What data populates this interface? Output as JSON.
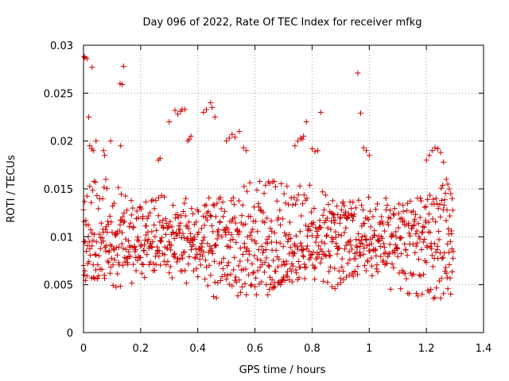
{
  "chart_data": {
    "type": "scatter",
    "title": "Day 096 of 2022, Rate Of TEC Index for receiver mfkg",
    "xlabel": "GPS time / hours",
    "ylabel": "ROTI / TECUs",
    "xlim": [
      0,
      1.4
    ],
    "ylim": [
      0,
      0.03
    ],
    "x_ticks": [
      0,
      0.2,
      0.4,
      0.6,
      0.8,
      1,
      1.2,
      1.4
    ],
    "x_tick_labels": [
      "0",
      "0.2",
      "0.4",
      "0.6",
      "0.8",
      "1",
      "1.2",
      "1.4"
    ],
    "y_ticks": [
      0,
      0.005,
      0.01,
      0.015,
      0.02,
      0.025,
      0.03
    ],
    "y_tick_labels": [
      "0",
      "0.005",
      "0.01",
      "0.015",
      "0.02",
      "0.025",
      "0.03"
    ],
    "grid": true,
    "marker": "+",
    "color": "#cc0000",
    "series": [
      {
        "x": [
          0.0,
          0.003,
          0.006,
          0.01,
          0.015,
          0.02,
          0.025,
          0.03,
          0.035,
          0.04,
          0.045,
          0.05,
          0.055,
          0.06,
          0.065,
          0.07,
          0.075,
          0.08,
          0.085,
          0.09,
          0.095,
          0.1,
          0.105,
          0.11,
          0.115,
          0.12,
          0.125,
          0.13,
          0.135,
          0.14,
          0.145,
          0.15,
          0.155,
          0.16,
          0.165,
          0.17,
          0.175,
          0.18,
          0.185,
          0.19,
          0.195,
          0.2,
          0.205,
          0.21,
          0.215,
          0.22,
          0.225,
          0.23,
          0.235,
          0.24,
          0.245,
          0.25,
          0.255,
          0.26,
          0.265,
          0.27,
          0.275,
          0.28,
          0.285,
          0.29,
          0.295,
          0.3,
          0.305,
          0.31,
          0.315,
          0.32,
          0.325,
          0.33,
          0.335,
          0.34,
          0.345,
          0.35,
          0.355,
          0.36,
          0.365,
          0.37,
          0.375,
          0.38,
          0.385,
          0.39,
          0.395,
          0.4,
          0.405,
          0.41,
          0.415,
          0.42,
          0.425,
          0.43,
          0.435,
          0.44,
          0.445,
          0.45,
          0.455,
          0.46,
          0.465,
          0.47,
          0.475,
          0.48,
          0.485,
          0.49,
          0.495,
          0.5,
          0.505,
          0.51,
          0.515,
          0.52,
          0.525,
          0.53,
          0.535,
          0.54,
          0.545,
          0.55,
          0.555,
          0.56,
          0.565,
          0.57,
          0.575,
          0.58,
          0.585,
          0.59,
          0.595,
          0.6,
          0.605,
          0.61,
          0.615,
          0.62,
          0.625,
          0.63,
          0.635,
          0.64,
          0.645,
          0.65,
          0.655,
          0.66,
          0.665,
          0.67,
          0.675,
          0.68,
          0.685,
          0.69,
          0.695,
          0.7,
          0.705,
          0.71,
          0.715,
          0.72,
          0.725,
          0.73,
          0.735,
          0.74,
          0.745,
          0.75,
          0.755,
          0.76,
          0.765,
          0.77,
          0.775,
          0.78,
          0.785,
          0.79,
          0.795,
          0.8,
          0.805,
          0.81,
          0.815,
          0.82,
          0.825,
          0.83,
          0.835,
          0.84,
          0.845,
          0.85,
          0.855,
          0.86,
          0.865,
          0.87,
          0.875,
          0.88,
          0.885,
          0.89,
          0.895,
          0.9,
          0.905,
          0.91,
          0.915,
          0.92,
          0.925,
          0.93,
          0.935,
          0.94,
          0.945,
          0.95,
          0.955,
          0.96,
          0.965,
          0.97,
          0.975,
          0.98,
          0.985,
          0.99,
          0.995,
          1.0,
          1.005,
          1.01,
          1.015,
          1.02,
          1.025,
          1.03,
          1.035,
          1.04,
          1.045,
          1.05,
          1.055,
          1.06,
          1.065,
          1.07,
          1.075,
          1.08,
          1.085,
          1.09,
          1.095,
          1.1,
          1.105,
          1.11,
          1.115,
          1.12,
          1.125,
          1.13,
          1.135,
          1.14,
          1.145,
          1.15,
          1.155,
          1.16,
          1.165,
          1.17,
          1.175,
          1.18,
          1.185,
          1.19,
          1.195,
          1.2,
          1.205,
          1.21,
          1.215,
          1.22,
          1.225,
          1.23,
          1.235,
          1.24,
          1.245,
          1.25,
          1.255,
          1.26,
          1.265,
          1.27,
          1.275,
          1.28,
          1.285,
          1.29,
          0.0,
          0.004,
          0.008,
          0.012,
          0.017,
          0.022,
          0.027,
          0.032,
          0.037,
          0.042,
          0.047,
          0.052,
          0.057,
          0.062,
          0.067,
          0.072,
          0.077,
          0.082,
          0.087,
          0.092,
          0.097,
          0.102,
          0.107,
          0.112,
          0.117,
          0.122,
          0.127,
          0.132,
          0.137,
          0.142,
          0.147,
          0.152,
          0.157,
          0.162,
          0.167,
          0.172,
          0.177,
          0.182,
          0.187,
          0.192,
          0.197,
          0.202,
          0.207,
          0.212,
          0.217,
          0.222,
          0.227,
          0.232,
          0.237,
          0.242,
          0.247,
          0.252,
          0.257,
          0.262,
          0.267,
          0.272,
          0.277,
          0.282,
          0.287,
          0.292,
          0.297,
          0.302,
          0.307,
          0.312,
          0.317,
          0.322,
          0.327,
          0.332,
          0.337,
          0.342,
          0.347,
          0.352,
          0.357,
          0.362,
          0.367,
          0.372,
          0.377,
          0.382,
          0.387,
          0.392,
          0.397,
          0.402,
          0.407,
          0.412,
          0.417,
          0.422,
          0.427,
          0.432,
          0.437,
          0.442,
          0.447,
          0.452,
          0.457,
          0.462,
          0.467,
          0.472,
          0.477,
          0.482,
          0.487,
          0.492,
          0.497,
          0.502,
          0.507,
          0.512,
          0.517,
          0.522,
          0.527,
          0.532,
          0.537,
          0.542,
          0.547,
          0.552,
          0.557,
          0.562,
          0.567,
          0.572,
          0.577,
          0.582,
          0.587,
          0.592,
          0.597,
          0.602,
          0.607,
          0.612,
          0.617,
          0.622,
          0.627,
          0.632,
          0.637,
          0.642,
          0.647,
          0.652,
          0.657,
          0.662,
          0.667,
          0.672,
          0.677,
          0.682,
          0.687,
          0.692,
          0.697,
          0.702,
          0.707,
          0.712,
          0.717,
          0.722,
          0.727,
          0.732,
          0.737,
          0.742,
          0.747,
          0.752,
          0.757,
          0.762,
          0.767,
          0.772,
          0.777,
          0.782,
          0.787,
          0.792,
          0.797,
          0.802,
          0.807,
          0.812,
          0.817,
          0.822,
          0.827,
          0.832,
          0.837,
          0.842,
          0.847,
          0.852,
          0.857,
          0.862,
          0.867,
          0.872,
          0.877,
          0.882,
          0.887,
          0.892,
          0.897,
          0.902,
          0.907,
          0.912,
          0.917,
          0.922,
          0.927,
          0.932,
          0.937,
          0.942,
          0.947,
          0.952,
          0.957,
          0.962,
          0.967,
          0.972,
          0.977,
          0.982,
          0.987,
          0.992,
          0.997,
          1.002,
          1.007,
          1.012,
          1.017,
          1.022,
          1.027,
          1.032,
          1.037,
          1.042,
          1.047,
          1.052,
          1.057,
          1.062,
          1.067,
          1.072,
          1.077,
          1.082,
          1.087,
          1.092,
          1.097,
          1.102,
          1.107,
          1.112,
          1.117,
          1.122,
          1.127,
          1.132,
          1.137,
          1.142,
          1.147,
          1.152,
          1.157,
          1.162,
          1.167,
          1.172,
          1.177,
          1.182,
          1.187,
          1.192,
          1.197,
          1.202,
          1.207,
          1.212,
          1.217,
          1.222,
          1.227,
          1.232,
          1.237,
          1.242,
          1.247,
          1.252,
          1.257,
          1.262,
          1.267,
          1.272,
          1.277,
          1.282,
          1.287,
          1.292,
          0.001,
          0.005,
          0.009,
          0.014,
          0.019,
          0.024,
          0.029,
          0.034,
          0.039,
          0.044,
          0.049,
          0.054,
          0.059,
          0.064,
          0.069,
          0.074,
          0.079,
          0.084,
          0.089,
          0.094,
          0.099,
          0.104,
          0.109,
          0.114,
          0.119,
          0.124,
          0.129,
          0.134,
          0.139,
          0.144,
          0.149,
          0.154,
          0.159,
          0.164,
          0.169,
          0.174,
          0.179,
          0.184,
          0.189,
          0.194,
          0.199,
          0.204,
          0.209,
          0.214,
          0.219,
          0.224,
          0.229,
          0.234,
          0.239,
          0.244,
          0.249,
          0.254,
          0.259,
          0.264,
          0.269,
          0.274,
          0.279,
          0.284,
          0.289,
          0.294,
          0.299,
          0.304,
          0.309,
          0.314,
          0.319,
          0.324,
          0.329,
          0.334,
          0.339,
          0.344,
          0.349,
          0.354,
          0.359,
          0.364,
          0.369,
          0.374,
          0.379,
          0.384,
          0.389,
          0.394,
          0.399,
          0.404,
          0.409,
          0.414,
          0.419,
          0.424,
          0.429,
          0.434,
          0.439,
          0.444,
          0.449,
          0.454,
          0.459,
          0.464,
          0.469,
          0.474,
          0.479,
          0.484,
          0.489,
          0.494,
          0.499,
          0.504,
          0.509,
          0.514,
          0.519,
          0.524,
          0.529,
          0.534,
          0.539,
          0.544,
          0.549,
          0.554,
          0.559,
          0.564,
          0.569,
          0.574,
          0.579,
          0.584,
          0.589,
          0.594,
          0.599,
          0.604,
          0.609,
          0.614,
          0.619,
          0.624,
          0.629,
          0.634,
          0.639,
          0.644,
          0.649,
          0.654,
          0.659,
          0.664,
          0.669,
          0.674,
          0.679,
          0.684,
          0.689,
          0.694,
          0.699,
          0.704,
          0.709,
          0.714,
          0.719,
          0.724,
          0.729,
          0.734,
          0.739,
          0.744,
          0.749,
          0.754,
          0.759,
          0.764,
          0.769,
          0.774,
          0.779,
          0.784,
          0.789,
          0.794,
          0.799,
          0.804,
          0.809,
          0.814,
          0.819,
          0.824,
          0.829,
          0.834,
          0.839,
          0.844,
          0.849,
          0.854,
          0.859,
          0.864,
          0.869,
          0.874,
          0.879,
          0.884,
          0.889,
          0.894,
          0.899,
          0.904,
          0.909,
          0.914,
          0.919,
          0.924,
          0.929,
          0.934,
          0.939,
          0.944,
          0.949,
          0.954,
          0.959,
          0.964,
          0.969,
          0.974,
          0.979,
          0.984,
          0.989,
          0.994,
          0.999,
          1.004,
          1.009,
          1.014,
          1.019,
          1.024,
          1.029,
          1.034,
          1.039,
          1.044,
          1.049,
          1.054,
          1.059,
          1.064,
          1.069,
          1.074,
          1.079,
          1.084,
          1.089,
          1.094,
          1.099,
          1.104,
          1.109,
          1.114,
          1.119,
          1.124,
          1.129,
          1.134,
          1.139,
          1.144,
          1.149,
          1.154,
          1.159,
          1.164,
          1.169,
          1.174,
          1.179,
          1.184,
          1.189,
          1.194,
          1.199,
          1.204,
          1.209,
          1.214,
          1.219,
          1.224,
          1.229,
          1.234,
          1.239,
          1.244,
          1.249,
          1.254,
          1.259,
          1.264,
          1.269,
          1.274,
          1.279,
          1.284,
          1.289,
          1.294,
          0.002,
          0.007,
          0.012,
          0.017,
          0.022,
          0.028,
          0.033,
          0.038,
          0.043,
          0.048,
          0.053,
          0.058,
          0.063,
          0.068,
          0.073,
          0.078,
          0.083,
          0.088,
          0.093,
          0.098,
          0.103,
          0.108,
          0.113,
          0.118,
          0.123,
          0.128,
          0.133,
          0.138,
          0.143,
          0.148,
          0.153,
          0.158,
          0.163,
          0.168,
          0.173,
          0.178,
          0.183,
          0.188,
          0.193,
          0.198,
          0.203,
          0.208,
          0.213,
          0.218,
          0.223,
          0.228,
          0.233,
          0.238,
          0.243,
          0.248,
          0.253,
          0.258,
          0.263,
          0.268,
          0.273,
          0.278,
          0.283,
          0.288,
          0.293,
          0.298,
          0.303,
          0.308,
          0.313,
          0.318,
          0.323,
          0.328,
          0.333,
          0.338,
          0.343,
          0.348,
          0.353,
          0.358,
          0.363,
          0.368,
          0.373,
          0.378,
          0.383,
          0.388,
          0.393,
          0.398,
          0.403,
          0.408,
          0.413,
          0.418,
          0.423,
          0.428,
          0.433,
          0.438,
          0.443,
          0.448,
          0.453,
          0.458,
          0.463,
          0.468,
          0.473,
          0.478,
          0.483,
          0.488,
          0.493,
          0.498,
          0.503,
          0.508,
          0.513,
          0.518,
          0.523,
          0.528,
          0.533,
          0.538,
          0.543,
          0.548,
          0.553,
          0.558,
          0.563,
          0.568,
          0.573,
          0.578,
          0.583,
          0.588,
          0.593,
          0.598,
          0.603,
          0.608,
          0.613,
          0.618,
          0.623,
          0.628,
          0.633,
          0.638,
          0.643,
          0.648,
          0.653,
          0.658,
          0.663,
          0.668,
          0.673,
          0.678,
          0.683,
          0.688,
          0.693,
          0.698,
          0.703,
          0.708,
          0.713,
          0.718,
          0.723,
          0.728,
          0.733,
          0.738,
          0.743,
          0.748,
          0.753,
          0.758,
          0.763,
          0.768,
          0.773,
          0.778,
          0.783,
          0.788,
          0.793,
          0.798,
          0.803,
          0.808,
          0.813,
          0.818,
          0.823,
          0.828,
          0.833,
          0.838,
          0.843,
          0.848,
          0.853,
          0.858,
          0.863,
          0.868,
          0.873,
          0.878,
          0.883,
          0.888,
          0.893,
          0.898,
          0.903,
          0.908,
          0.913,
          0.918,
          0.923,
          0.928,
          0.933,
          0.938,
          0.943,
          0.948,
          0.953,
          0.958,
          0.963,
          0.968,
          0.973,
          0.978,
          0.983,
          0.988,
          0.993,
          0.998,
          1.003,
          1.008,
          1.013,
          1.018,
          1.023,
          1.028,
          1.033,
          1.038,
          1.043,
          1.048,
          1.053,
          1.058,
          1.063,
          1.068,
          1.073,
          1.078,
          1.083,
          1.088,
          1.093,
          1.098,
          1.103,
          1.108,
          1.113,
          1.118,
          1.123,
          1.128,
          1.133,
          1.138,
          1.143,
          1.148,
          1.153,
          1.158,
          1.163,
          1.168,
          1.173,
          1.178,
          1.183,
          1.188,
          1.193,
          1.198,
          1.203,
          1.208,
          1.213,
          1.218,
          1.223,
          1.228,
          1.233,
          1.238,
          1.243,
          1.248,
          1.253,
          1.258,
          1.263,
          1.268,
          1.273,
          1.278,
          1.283,
          1.288,
          1.293,
          0.002,
          0.005,
          0.012,
          0.018,
          0.022,
          0.029,
          0.034,
          0.044,
          0.07,
          0.074,
          0.078,
          0.095,
          0.128,
          0.135,
          0.262,
          0.268,
          0.3,
          0.32,
          0.33,
          0.34,
          0.345,
          0.355,
          0.365,
          0.37,
          0.376,
          0.42,
          0.43,
          0.445,
          0.45,
          0.46,
          0.5,
          0.51,
          0.52,
          0.53,
          0.545,
          0.56,
          0.57,
          0.74,
          0.75,
          0.76,
          0.765,
          0.77,
          0.78,
          0.8,
          0.81,
          0.82,
          0.83,
          0.96,
          0.97,
          0.98,
          0.99,
          1.0,
          1.2,
          1.21,
          1.22,
          1.23,
          1.24,
          1.25,
          1.26,
          1.27,
          1.275,
          1.28,
          1.285,
          1.29,
          0.03,
          0.13,
          0.14,
          0.64,
          0.65,
          0.66,
          0.67,
          0.68,
          0.69,
          0.7,
          0.71,
          0.72,
          0.73,
          0.87,
          0.88,
          0.89,
          0.9,
          0.91,
          0.92,
          0.93,
          0.94,
          0.95
        ]
      }
    ]
  }
}
